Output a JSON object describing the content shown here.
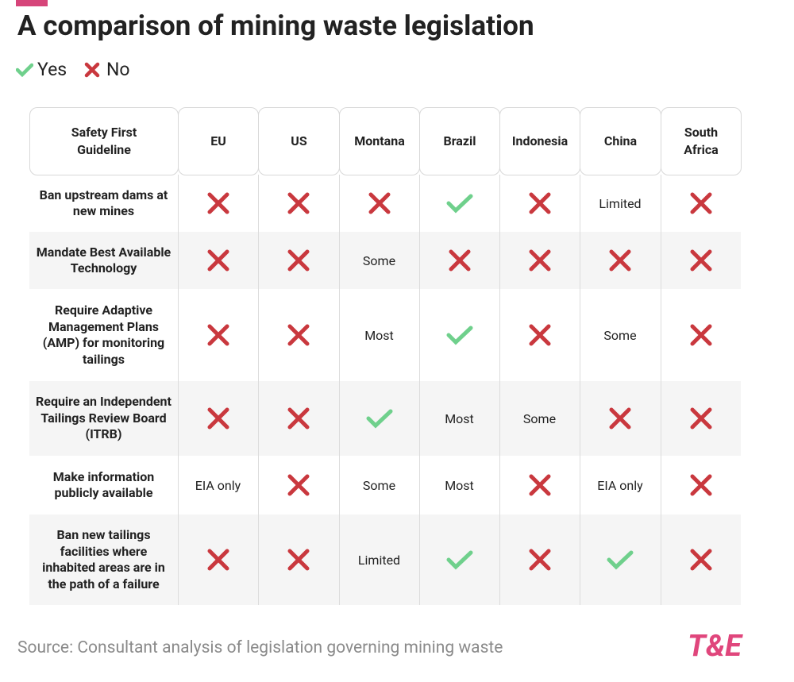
{
  "header": {
    "title": "A comparison of mining waste legislation"
  },
  "legend": {
    "yes": "Yes",
    "no": "No"
  },
  "table": {
    "columns": [
      "Safety First Guideline",
      "EU",
      "US",
      "Montana",
      "Brazil",
      "Indonesia",
      "China",
      "South Africa"
    ],
    "rows": [
      {
        "label": "Ban upstream dams at new mines",
        "cells": [
          false,
          false,
          false,
          true,
          false,
          "Limited",
          false
        ]
      },
      {
        "label": "Mandate Best Available Technology",
        "cells": [
          false,
          false,
          "Some",
          false,
          false,
          false,
          false
        ]
      },
      {
        "label": "Require Adaptive Management Plans (AMP) for monitoring tailings",
        "cells": [
          false,
          false,
          "Most",
          true,
          false,
          "Some",
          false
        ]
      },
      {
        "label": "Require an Independent Tailings Review Board (ITRB)",
        "cells": [
          false,
          false,
          true,
          "Most",
          "Some",
          false,
          false
        ]
      },
      {
        "label": "Make information publicly available",
        "cells": [
          "EIA only",
          false,
          "Some",
          "Most",
          false,
          "EIA only",
          false
        ]
      },
      {
        "label": "Ban new tailings facilities where inhabited areas are in the path of a failure",
        "cells": [
          false,
          false,
          "Limited",
          true,
          false,
          true,
          false
        ]
      }
    ]
  },
  "footer": {
    "source": "Source: Consultant analysis of legislation governing mining waste",
    "logo": "T&E"
  }
}
